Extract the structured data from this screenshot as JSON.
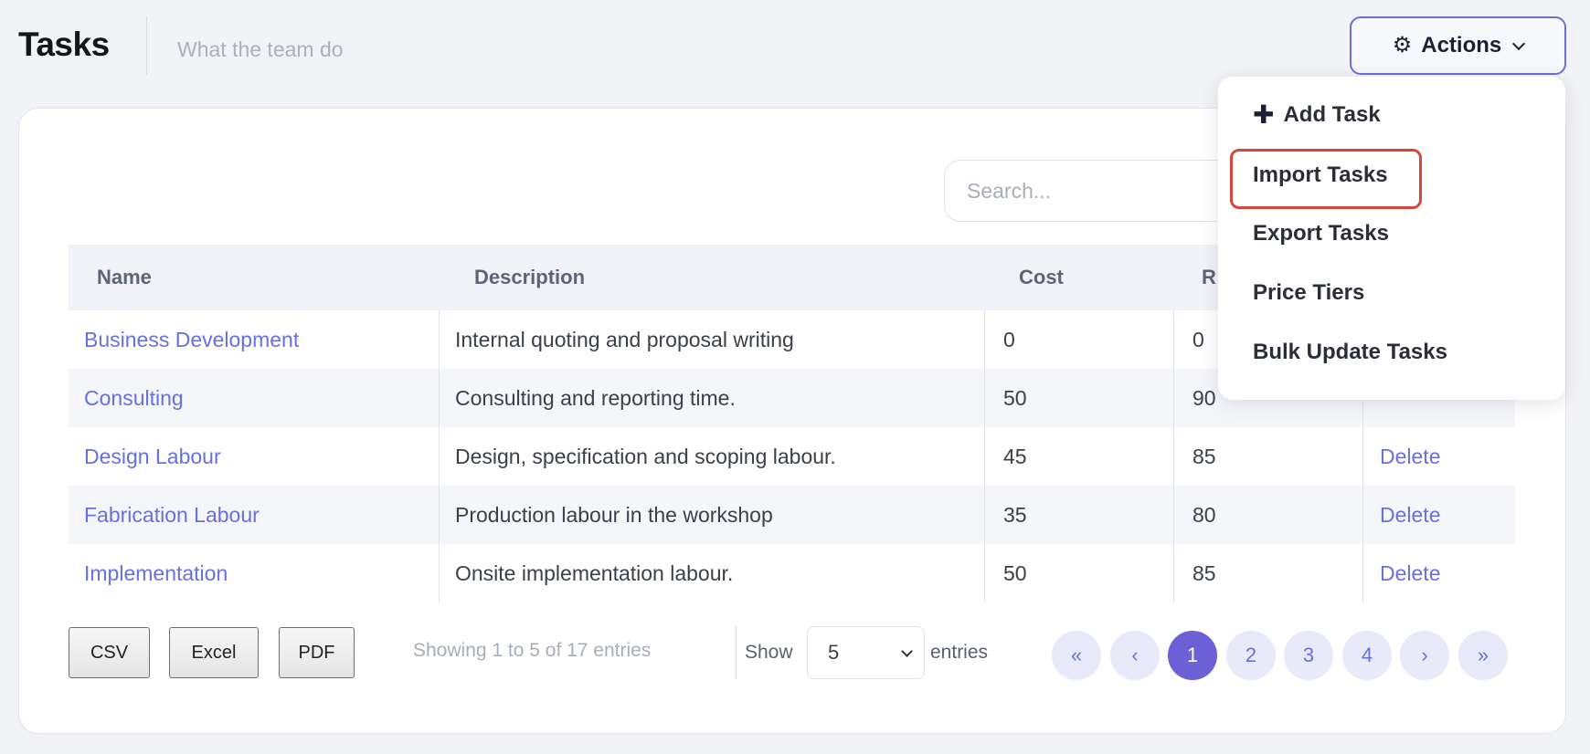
{
  "header": {
    "title": "Tasks",
    "subtitle": "What the team do",
    "actions_label": "Actions"
  },
  "search": {
    "placeholder": "Search..."
  },
  "table": {
    "columns": [
      "Name",
      "Description",
      "Cost",
      "R"
    ],
    "rows": [
      {
        "name": "Business Development",
        "description": "Internal quoting and proposal writing",
        "cost": "0",
        "rate": "0",
        "action": ""
      },
      {
        "name": "Consulting",
        "description": "Consulting and reporting time.",
        "cost": "50",
        "rate": "90",
        "action": ""
      },
      {
        "name": "Design Labour",
        "description": "Design, specification and scoping labour.",
        "cost": "45",
        "rate": "85",
        "action": "Delete"
      },
      {
        "name": "Fabrication Labour",
        "description": "Production labour in the workshop",
        "cost": "35",
        "rate": "80",
        "action": "Delete"
      },
      {
        "name": "Implementation",
        "description": "Onsite implementation labour.",
        "cost": "50",
        "rate": "85",
        "action": "Delete"
      }
    ]
  },
  "footer": {
    "export_buttons": [
      "CSV",
      "Excel",
      "PDF"
    ],
    "info": "Showing 1 to 5 of 17 entries",
    "show_label": "Show",
    "page_size": "5",
    "entries_label": "entries",
    "pager": {
      "first": "«",
      "prev": "‹",
      "pages": [
        "1",
        "2",
        "3",
        "4"
      ],
      "next": "›",
      "last": "»",
      "current": "1"
    }
  },
  "actions_menu": {
    "items": [
      "Add Task",
      "Import Tasks",
      "Export Tasks",
      "Price Tiers",
      "Bulk Update Tasks"
    ],
    "highlighted": "Import Tasks"
  },
  "colors": {
    "accent": "#6770e0",
    "active_page": "#6d5fd6",
    "highlight": "#d8483a"
  },
  "icons": {
    "actions": "gear-icon",
    "add": "plus-icon"
  }
}
